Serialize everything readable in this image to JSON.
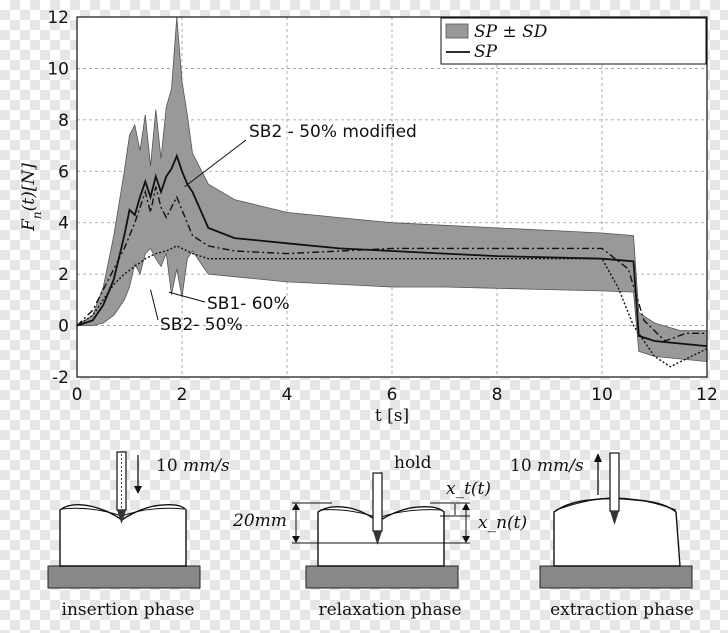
{
  "chart_data": {
    "type": "line",
    "xlabel": "t [s]",
    "ylabel_parts": {
      "F": "F",
      "sub": "n",
      "rest": "(t)[N]"
    },
    "xlim": [
      0,
      12
    ],
    "ylim": [
      -2,
      12
    ],
    "x_ticks": [
      0,
      2,
      4,
      6,
      8,
      10,
      12
    ],
    "y_ticks": [
      -2,
      0,
      2,
      4,
      6,
      8,
      10,
      12
    ],
    "grid": true,
    "legend_position": "top-right",
    "legend": {
      "band": {
        "label": "SP ± SD"
      },
      "line": {
        "label": "SP"
      }
    },
    "colors": {
      "band": "#999999",
      "band_edge": "#555555",
      "line": "#111111",
      "grid": "#9a9a9a"
    },
    "series": [
      {
        "style": "band",
        "x": [
          0,
          0.3,
          0.5,
          0.7,
          0.9,
          1.0,
          1.1,
          1.2,
          1.3,
          1.4,
          1.5,
          1.6,
          1.7,
          1.8,
          1.9,
          2.0,
          2.1,
          2.2,
          2.5,
          3.0,
          4.0,
          5.0,
          6.0,
          7.0,
          8.0,
          9.0,
          10.0,
          10.6,
          10.7,
          11.0,
          11.5,
          12.0
        ],
        "upper": [
          0,
          0.4,
          1.5,
          3.5,
          6.0,
          7.4,
          7.8,
          6.8,
          8.2,
          6.2,
          8.4,
          6.5,
          8.5,
          9.2,
          12.0,
          9.5,
          8.2,
          6.7,
          5.5,
          4.9,
          4.4,
          4.2,
          4.0,
          3.9,
          3.8,
          3.7,
          3.6,
          3.5,
          0.5,
          0.1,
          -0.2,
          -0.2
        ],
        "lower": [
          0,
          0,
          0.1,
          0.4,
          1.0,
          1.5,
          2.4,
          2.0,
          2.8,
          3.0,
          2.6,
          2.3,
          2.8,
          1.2,
          2.2,
          1.1,
          2.6,
          2.9,
          2.0,
          1.9,
          1.7,
          1.6,
          1.5,
          1.5,
          1.45,
          1.4,
          1.35,
          1.3,
          -1.0,
          -1.2,
          -1.3,
          -1.4
        ]
      },
      {
        "name": "SB2 - 50% modified",
        "style": "solid",
        "x": [
          0,
          0.3,
          0.5,
          0.7,
          0.9,
          1.0,
          1.1,
          1.2,
          1.3,
          1.4,
          1.5,
          1.6,
          1.7,
          1.8,
          1.9,
          2.0,
          2.1,
          2.2,
          2.5,
          3.0,
          4.0,
          5.0,
          6.0,
          7.0,
          8.0,
          9.0,
          10.0,
          10.6,
          10.7,
          11.0,
          11.5,
          12.0
        ],
        "y": [
          0,
          0.2,
          0.8,
          1.8,
          3.5,
          4.5,
          4.3,
          5.0,
          5.6,
          5.0,
          5.8,
          5.2,
          5.8,
          6.1,
          6.6,
          6.0,
          5.5,
          5.2,
          3.8,
          3.4,
          3.2,
          3.0,
          2.9,
          2.8,
          2.7,
          2.65,
          2.6,
          2.5,
          -0.4,
          -0.6,
          -0.7,
          -0.8
        ]
      },
      {
        "name": "SB2- 50%",
        "style": "dashdot",
        "x": [
          0,
          0.3,
          0.5,
          0.7,
          0.9,
          1.1,
          1.3,
          1.4,
          1.5,
          1.6,
          1.7,
          1.8,
          1.9,
          2.0,
          2.2,
          2.5,
          3.0,
          4.0,
          6.0,
          8.0,
          10.0,
          10.5,
          10.8,
          11.2,
          11.6,
          12.0
        ],
        "y": [
          0,
          0.6,
          1.4,
          2.2,
          3.0,
          4.0,
          5.2,
          4.4,
          5.4,
          4.6,
          4.2,
          4.6,
          5.0,
          4.5,
          3.5,
          3.1,
          2.9,
          2.8,
          3.0,
          3.0,
          3.0,
          2.2,
          0.2,
          -0.6,
          -0.3,
          -0.3
        ]
      },
      {
        "name": "SB1- 60%",
        "style": "dotted",
        "x": [
          0,
          0.3,
          0.5,
          0.7,
          0.9,
          1.1,
          1.3,
          1.5,
          1.7,
          1.9,
          2.0,
          2.2,
          2.5,
          3.0,
          4.0,
          6.0,
          8.0,
          10.0,
          10.3,
          10.6,
          11.0,
          11.3,
          11.6,
          12.0
        ],
        "y": [
          0,
          0.4,
          1.0,
          1.6,
          2.0,
          2.3,
          2.6,
          2.8,
          2.9,
          3.1,
          3.0,
          2.8,
          2.6,
          2.6,
          2.6,
          2.6,
          2.6,
          2.6,
          1.5,
          0.0,
          -1.2,
          -1.6,
          -1.3,
          -0.9
        ]
      }
    ],
    "annotations": [
      {
        "text": "SB2 - 50% modified",
        "at": [
          2.05,
          5.4
        ]
      },
      {
        "text": "SB1- 60%",
        "at": [
          1.75,
          1.3
        ]
      },
      {
        "text": "SB2- 50%",
        "at": [
          1.4,
          1.4
        ]
      }
    ]
  },
  "diagram": {
    "phases": [
      {
        "label": "insertion phase",
        "speed_value": "10",
        "speed_unit": "mm/s"
      },
      {
        "label": "relaxation phase",
        "hold": "hold",
        "height": "20mm",
        "xt": "x_t(t)",
        "xn": "x_n(t)"
      },
      {
        "label": "extraction phase",
        "speed_value": "10",
        "speed_unit": "mm/s"
      }
    ]
  }
}
